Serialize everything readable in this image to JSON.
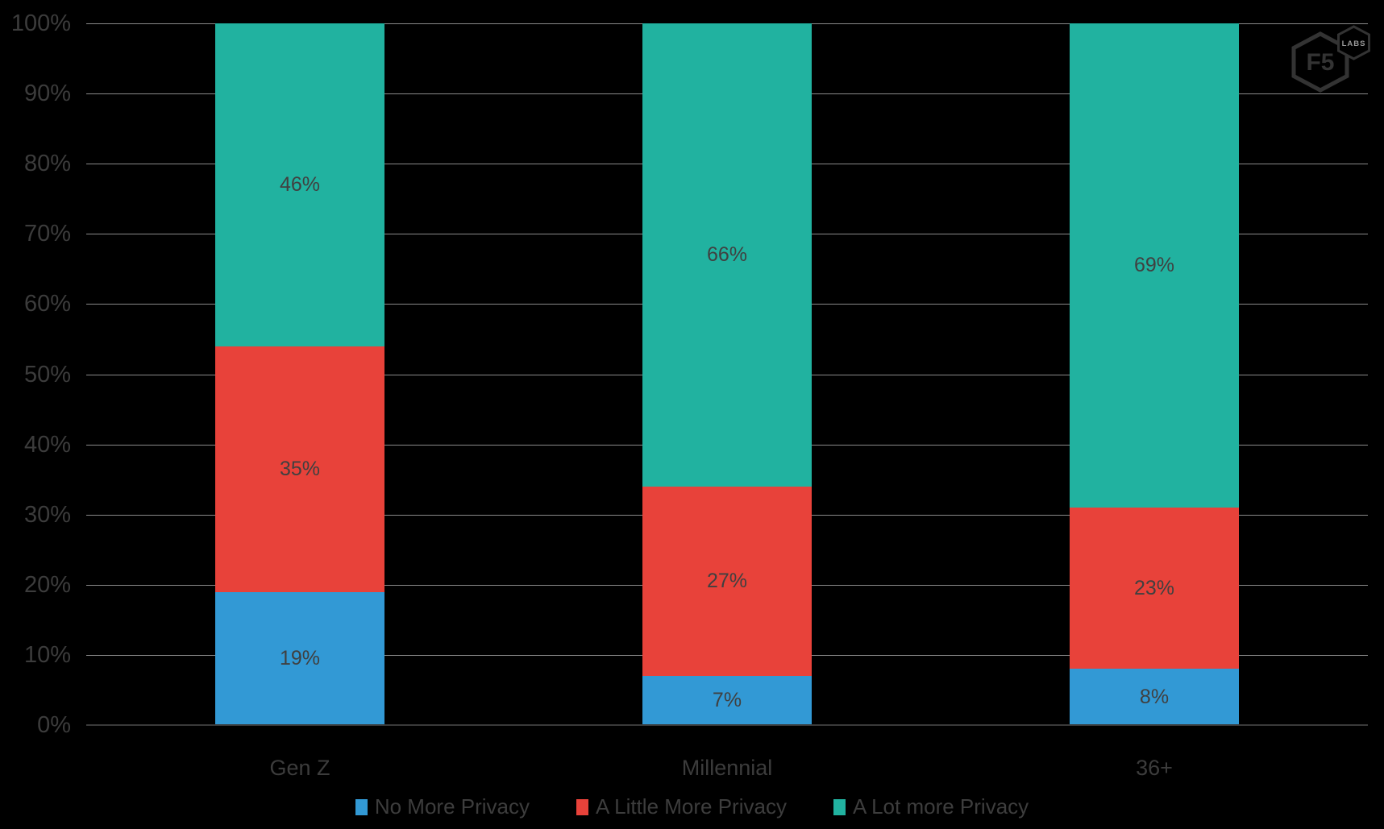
{
  "chart_data": {
    "type": "bar",
    "subtype": "stacked-100-percent",
    "title": "",
    "categories": [
      "Gen Z",
      "Millennial",
      "36+"
    ],
    "series": [
      {
        "name": "No More Privacy",
        "color": "#3299D5",
        "values": [
          19,
          7,
          8
        ]
      },
      {
        "name": "A Little More Privacy",
        "color": "#E8423A",
        "values": [
          35,
          27,
          23
        ]
      },
      {
        "name": "A Lot more Privacy",
        "color": "#21B2A0",
        "values": [
          46,
          66,
          69
        ]
      }
    ],
    "data_label_suffix": "%",
    "ylim": [
      0,
      100
    ],
    "y_ticks": [
      "0%",
      "10%",
      "20%",
      "30%",
      "40%",
      "50%",
      "60%",
      "70%",
      "80%",
      "90%",
      "100%"
    ],
    "grid": "horizontal",
    "legend_position": "bottom",
    "colors": {
      "background": "#000000",
      "gridline": "#8A8A8A",
      "axis_line": "#3A3A3A",
      "tick_label": "#3C3C3C",
      "data_label": "#404040",
      "legend_label": "#3D3D3D"
    }
  },
  "logo": {
    "main": "F5",
    "badge": "LABS"
  }
}
